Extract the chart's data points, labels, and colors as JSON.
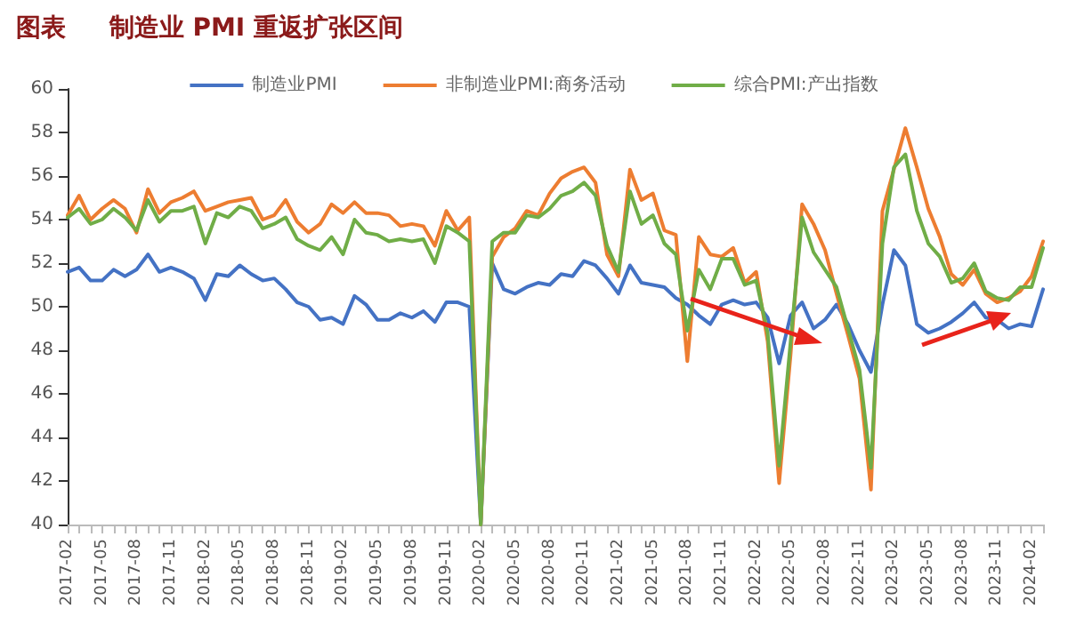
{
  "chart_data": {
    "type": "line",
    "title": "图表     制造业 PMI 重返扩张区间",
    "categories": [
      "2017-02",
      null,
      null,
      "2017-05",
      null,
      null,
      "2017-08",
      null,
      null,
      "2017-11",
      null,
      null,
      "2018-02",
      null,
      null,
      "2018-05",
      null,
      null,
      "2018-08",
      null,
      null,
      "2018-11",
      null,
      null,
      "2019-02",
      null,
      null,
      "2019-05",
      null,
      null,
      "2019-08",
      null,
      null,
      "2019-11",
      null,
      null,
      "2020-02",
      null,
      null,
      "2020-05",
      null,
      null,
      "2020-08",
      null,
      null,
      "2020-11",
      null,
      null,
      "2021-02",
      null,
      null,
      "2021-05",
      null,
      null,
      "2021-08",
      null,
      null,
      "2021-11",
      null,
      null,
      "2022-02",
      null,
      null,
      "2022-05",
      null,
      null,
      "2022-08",
      null,
      null,
      "2022-11",
      null,
      null,
      "2023-02",
      null,
      null,
      "2023-05",
      null,
      null,
      "2023-08",
      null,
      null,
      "2023-11",
      null,
      null,
      "2024-02",
      null
    ],
    "series": [
      {
        "name": "制造业PMI",
        "color": "#4472c4",
        "values": [
          51.6,
          51.8,
          51.2,
          51.2,
          51.7,
          51.4,
          51.7,
          52.4,
          51.6,
          51.8,
          51.6,
          51.3,
          50.3,
          51.5,
          51.4,
          51.9,
          51.5,
          51.2,
          51.3,
          50.8,
          50.2,
          50.0,
          49.4,
          49.5,
          49.2,
          50.5,
          50.1,
          49.4,
          49.4,
          49.7,
          49.5,
          49.8,
          49.3,
          50.2,
          50.2,
          50.0,
          40,
          52.0,
          50.8,
          50.6,
          50.9,
          51.1,
          51.0,
          51.5,
          51.4,
          52.1,
          51.9,
          51.3,
          50.6,
          51.9,
          51.1,
          51.0,
          50.9,
          50.4,
          50.1,
          49.6,
          49.2,
          50.1,
          50.3,
          50.1,
          50.2,
          49.5,
          47.4,
          49.6,
          50.2,
          49.0,
          49.4,
          50.1,
          49.2,
          48.0,
          47.0,
          50.1,
          52.6,
          51.9,
          49.2,
          48.8,
          49.0,
          49.3,
          49.7,
          50.2,
          49.5,
          49.4,
          49.0,
          49.2,
          49.1,
          50.8
        ]
      },
      {
        "name": "非制造业PMI:商务活动",
        "color": "#ed7d31",
        "values": [
          54.2,
          55.1,
          54.0,
          54.5,
          54.9,
          54.5,
          53.4,
          55.4,
          54.3,
          54.8,
          55.0,
          55.3,
          54.4,
          54.6,
          54.8,
          54.9,
          55.0,
          54.0,
          54.2,
          54.9,
          53.9,
          53.4,
          53.8,
          54.7,
          54.3,
          54.8,
          54.3,
          54.3,
          54.2,
          53.7,
          53.8,
          53.7,
          52.8,
          54.4,
          53.5,
          54.1,
          40,
          52.3,
          53.2,
          53.6,
          54.4,
          54.2,
          55.2,
          55.9,
          56.2,
          56.4,
          55.7,
          52.4,
          51.4,
          56.3,
          54.9,
          55.2,
          53.5,
          53.3,
          47.5,
          53.2,
          52.4,
          52.3,
          52.7,
          51.1,
          51.6,
          48.4,
          41.9,
          47.8,
          54.7,
          53.8,
          52.6,
          50.6,
          48.7,
          46.7,
          41.6,
          54.4,
          56.3,
          58.2,
          56.4,
          54.5,
          53.2,
          51.5,
          51.0,
          51.7,
          50.6,
          50.2,
          50.4,
          50.7,
          51.4,
          53.0
        ]
      },
      {
        "name": "综合PMI:产出指数",
        "color": "#70ad47",
        "values": [
          54.1,
          54.5,
          53.8,
          54.0,
          54.5,
          54.1,
          53.5,
          54.9,
          53.9,
          54.4,
          54.4,
          54.6,
          52.9,
          54.3,
          54.1,
          54.6,
          54.4,
          53.6,
          53.8,
          54.1,
          53.1,
          52.8,
          52.6,
          53.2,
          52.4,
          54.0,
          53.4,
          53.3,
          53.0,
          53.1,
          53.0,
          53.1,
          52.0,
          53.7,
          53.4,
          53.0,
          40,
          53.0,
          53.4,
          53.4,
          54.2,
          54.1,
          54.5,
          55.1,
          55.3,
          55.7,
          55.1,
          52.8,
          51.6,
          55.3,
          53.8,
          54.2,
          52.9,
          52.4,
          48.9,
          51.7,
          50.8,
          52.2,
          52.2,
          51.0,
          51.2,
          48.8,
          42.7,
          48.4,
          54.1,
          52.5,
          51.7,
          50.9,
          49.0,
          47.1,
          42.6,
          52.9,
          56.4,
          57.0,
          54.4,
          52.9,
          52.3,
          51.1,
          51.3,
          52.0,
          50.7,
          50.4,
          50.3,
          50.9,
          50.9,
          52.7
        ]
      }
    ],
    "ylim": [
      40,
      60
    ],
    "yticks": [
      40,
      42,
      44,
      46,
      48,
      50,
      52,
      54,
      56,
      58,
      60
    ],
    "legend": "top",
    "grid": false,
    "marker": "none",
    "line_style": "solid"
  }
}
